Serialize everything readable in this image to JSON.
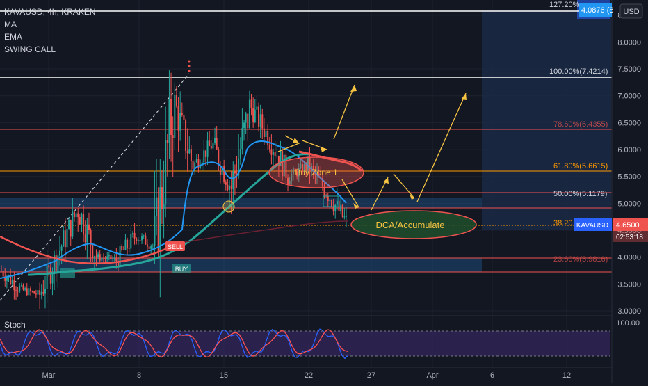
{
  "header": {
    "symbol_line": "KAVAUSD, 4h, KRAKEN",
    "indicators": [
      "MA",
      "EMA",
      "SWING CALL"
    ]
  },
  "axis": {
    "currency_button": "USD",
    "y_ticks": [
      "8.5000",
      "8.0000",
      "7.5000",
      "7.0000",
      "6.5000",
      "6.0000",
      "5.5000",
      "5.0000",
      "4.5000",
      "4.0000",
      "3.5000",
      "3.0000"
    ],
    "x_ticks": [
      "Mar",
      "8",
      "15",
      "22",
      "27",
      "Apr",
      "6",
      "12"
    ]
  },
  "price_tags": {
    "fib_top": "4.0876 (8",
    "last_price": "4.6500",
    "countdown": "02:53:18",
    "symbol_tag": "KAVAUSD"
  },
  "fib_labels": {
    "f1272": "127.20%",
    "f100": "100.00%(7.4214)",
    "f786": "78.60%(6.4355)",
    "f618": "61.80%(5.6615)",
    "f50": "50.00%(5.1179)",
    "f382": "38.20",
    "f236": "23.60%(3.9816)"
  },
  "annotations": {
    "buy_zone": "Buy Zone 1",
    "dca": "DCA/Accumulate",
    "sell_tag": "SELL",
    "buy_tag": "BUY"
  },
  "stoch": {
    "label": "Stoch",
    "ticks": [
      "100.00"
    ]
  },
  "colors": {
    "background": "#131722",
    "grid": "#1e2230",
    "candle_up": "#26a69a",
    "candle_down": "#ef5350",
    "ma_line": "#2196f3",
    "ema_line": "#26a69a",
    "fib_red": "#ef5350",
    "fib_orange": "#ff9800",
    "fib_blue_band": "#1e4a7a",
    "arrow": "#f5c242",
    "stoch_k": "#2962ff",
    "stoch_d": "#ff5252",
    "stoch_band": "#3a2a6a"
  },
  "chart_data": {
    "type": "candlestick",
    "symbol": "KAVAUSD",
    "timeframe": "4h",
    "exchange": "KRAKEN",
    "ylim": [
      3.0,
      8.6
    ],
    "y_ticks": [
      3.0,
      3.5,
      4.0,
      4.5,
      5.0,
      5.5,
      6.0,
      6.5,
      7.0,
      7.5,
      8.0,
      8.5
    ],
    "x_labels": [
      "Mar",
      "8",
      "15",
      "22",
      "27",
      "Apr",
      "6",
      "12"
    ],
    "last_price": 4.65,
    "fib_levels": [
      {
        "label": "100.00%",
        "price": 7.4214
      },
      {
        "label": "78.60%",
        "price": 6.4355
      },
      {
        "label": "61.80%",
        "price": 5.6615
      },
      {
        "label": "50.00%",
        "price": 5.1179
      },
      {
        "label": "38.20%",
        "price": 4.65
      },
      {
        "label": "23.60%",
        "price": 3.9816
      }
    ],
    "price_path": [
      {
        "x": "Feb 24",
        "close": 3.75
      },
      {
        "x": "Feb 27",
        "close": 3.4
      },
      {
        "x": "Mar 1",
        "close": 3.3
      },
      {
        "x": "Mar 3",
        "close": 4.1
      },
      {
        "x": "Mar 4",
        "close": 4.9
      },
      {
        "x": "Mar 6",
        "close": 4.0
      },
      {
        "x": "Mar 8",
        "close": 3.95
      },
      {
        "x": "Mar 9",
        "close": 4.4
      },
      {
        "x": "Mar 11",
        "close": 4.2
      },
      {
        "x": "Mar 12",
        "close": 6.9
      },
      {
        "x": "Mar 13",
        "close": 5.7
      },
      {
        "x": "Mar 15",
        "close": 6.1
      },
      {
        "x": "Mar 16",
        "close": 5.3
      },
      {
        "x": "Mar 18",
        "close": 6.8
      },
      {
        "x": "Mar 20",
        "close": 6.2
      },
      {
        "x": "Mar 21",
        "close": 5.5
      },
      {
        "x": "Mar 22",
        "close": 5.7
      },
      {
        "x": "Mar 23",
        "close": 5.2
      },
      {
        "x": "Mar 24",
        "close": 4.65
      }
    ]
  }
}
